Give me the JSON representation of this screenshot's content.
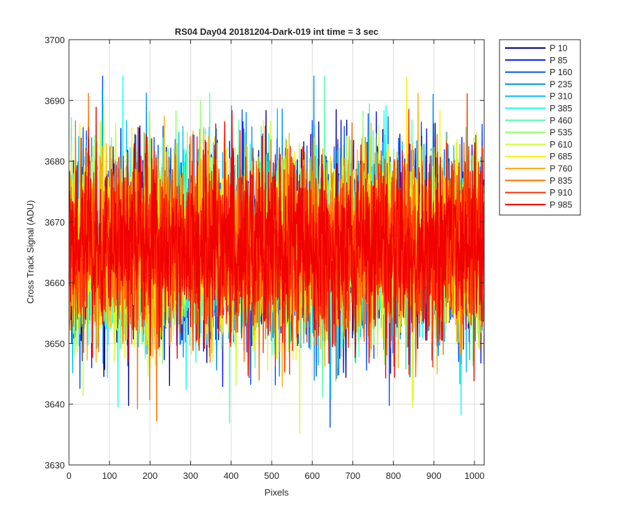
{
  "chart_data": {
    "type": "line",
    "title": "RS04 Day04 20181204-Dark-019 int time = 3 sec",
    "xlabel": "Pixels",
    "ylabel": "Cross Track Signal (ADU)",
    "xlim": [
      0,
      1024
    ],
    "ylim": [
      3630,
      3700
    ],
    "x_ticks": [
      0,
      100,
      200,
      300,
      400,
      500,
      600,
      700,
      800,
      900,
      1000
    ],
    "y_ticks": [
      3630,
      3640,
      3650,
      3660,
      3670,
      3680,
      3690,
      3700
    ],
    "grid": true,
    "legend_position": "outside-top-right",
    "n_points": 1024,
    "noise": {
      "mean": 3666,
      "std": 7.5,
      "observed_min": 3634,
      "observed_max": 3694
    },
    "series": [
      {
        "name": "P 10",
        "color": "#00008F"
      },
      {
        "name": "P 85",
        "color": "#0010FF"
      },
      {
        "name": "P 160",
        "color": "#0050FF"
      },
      {
        "name": "P 235",
        "color": "#0090FF"
      },
      {
        "name": "P 310",
        "color": "#00BFFF"
      },
      {
        "name": "P 385",
        "color": "#10FFEF"
      },
      {
        "name": "P 460",
        "color": "#50FFAF"
      },
      {
        "name": "P 535",
        "color": "#8FFF70"
      },
      {
        "name": "P 610",
        "color": "#CFFF30"
      },
      {
        "name": "P 685",
        "color": "#FFEF00"
      },
      {
        "name": "P 760",
        "color": "#FFAF00"
      },
      {
        "name": "P 835",
        "color": "#FF7000"
      },
      {
        "name": "P 910",
        "color": "#FF3000"
      },
      {
        "name": "P 985",
        "color": "#F00000"
      }
    ]
  }
}
